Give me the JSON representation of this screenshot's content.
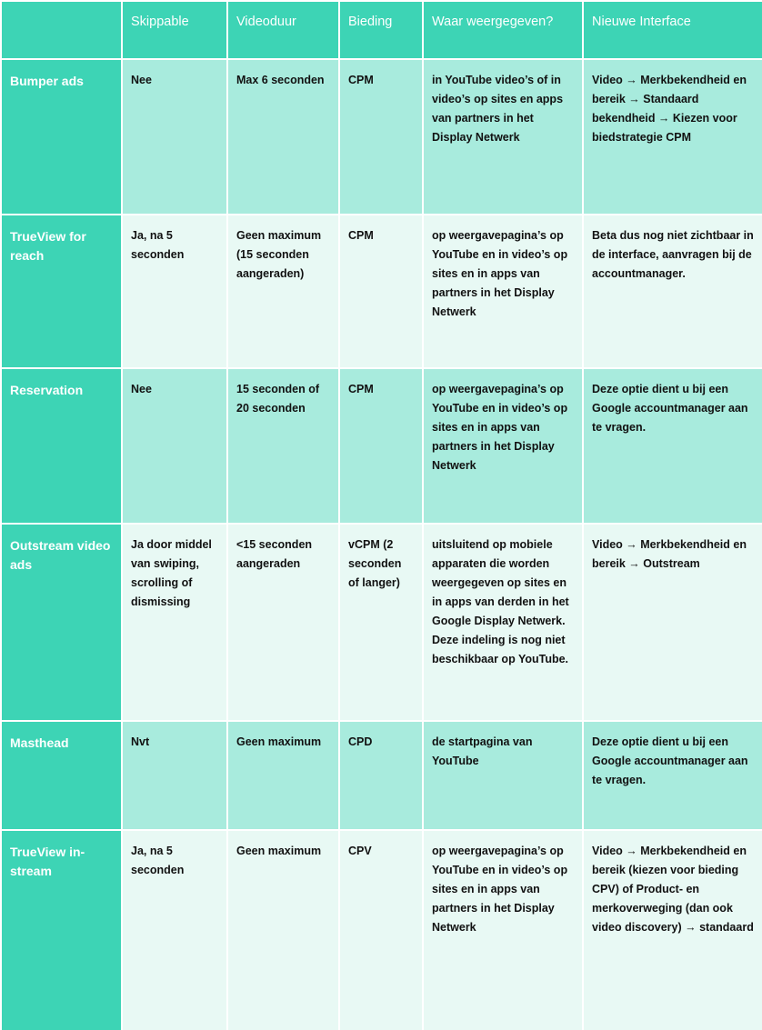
{
  "table": {
    "columns": [
      "Skippable",
      "Videoduur",
      "Bieding",
      "Waar weergegeven?",
      "Nieuwe Interface"
    ],
    "rows": [
      {
        "label": "Bumper ads",
        "cells": [
          "Nee",
          "Max 6 seconden",
          "CPM",
          "in YouTube video’s of in video’s op sites en apps van partners in het Display Netwerk",
          "Video → Merkbekendheid en bereik → Standaard bekendheid → Kiezen voor biedstrategie CPM"
        ]
      },
      {
        "label": "TrueView for reach",
        "cells": [
          "Ja, na 5 seconden",
          "Geen maximum (15 seconden aangeraden)",
          "CPM",
          "op weergavepagina’s op YouTube en in video’s op sites en in apps van partners in het Display Netwerk",
          "Beta dus nog niet zichtbaar in de interface, aanvragen bij de accountmanager."
        ]
      },
      {
        "label": "Reservation",
        "cells": [
          "Nee",
          "15 seconden of 20 seconden",
          "CPM",
          "op weergavepagina’s op YouTube en in video’s op sites en in apps van partners in het Display Netwerk",
          "Deze optie dient u bij een Google accountmanager aan te vragen."
        ]
      },
      {
        "label": "Outstream video ads",
        "cells": [
          "Ja door middel van swiping, scrolling of dismissing",
          "<15 seconden aangeraden",
          "vCPM (2 seconden of langer)",
          "uitsluitend op mobiele apparaten die worden weergegeven op sites en in apps van derden in het Google Display Netwerk. Deze indeling is nog niet beschikbaar op YouTube.",
          "Video → Merkbekendheid en bereik → Outstream"
        ]
      },
      {
        "label": "Masthead",
        "cells": [
          "Nvt",
          "Geen maximum",
          "CPD",
          "de startpagina van YouTube",
          "Deze optie dient u bij een Google accountmanager aan te vragen."
        ]
      },
      {
        "label": "TrueView in-stream",
        "cells": [
          "Ja, na 5 seconden",
          "Geen maximum",
          "CPV",
          "op weergavepagina’s op YouTube en in video’s op sites en in apps van partners in het Display Netwerk",
          "Video → Merkbekendheid en bereik (kiezen voor bieding CPV) of Product- en merkoverweging (dan ook video discovery) → standaard"
        ]
      }
    ]
  }
}
